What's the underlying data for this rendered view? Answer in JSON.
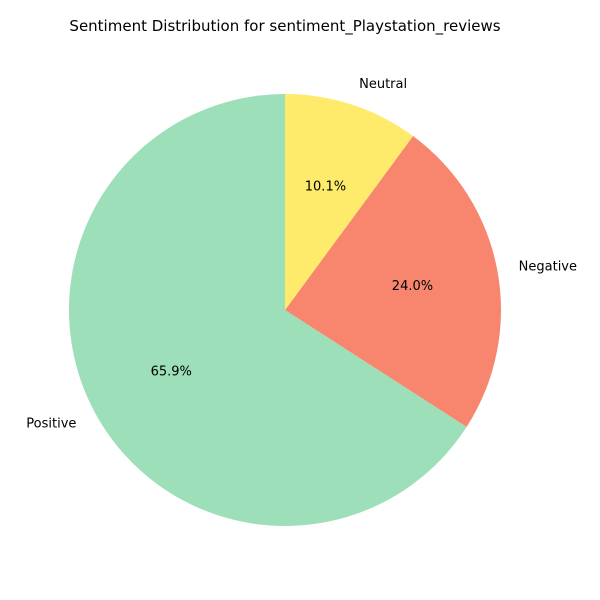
{
  "chart_data": {
    "type": "pie",
    "title": "Sentiment Distribution for sentiment_Playstation_reviews",
    "start_angle_deg": 90,
    "direction": "counterclockwise",
    "slices": [
      {
        "label": "Positive",
        "value": 65.9,
        "pct_label": "65.9%",
        "color": "#9ddfb9"
      },
      {
        "label": "Negative",
        "value": 24.0,
        "pct_label": "24.0%",
        "color": "#f8866f"
      },
      {
        "label": "Neutral",
        "value": 10.1,
        "pct_label": "10.1%",
        "color": "#ffeb6b"
      }
    ]
  }
}
